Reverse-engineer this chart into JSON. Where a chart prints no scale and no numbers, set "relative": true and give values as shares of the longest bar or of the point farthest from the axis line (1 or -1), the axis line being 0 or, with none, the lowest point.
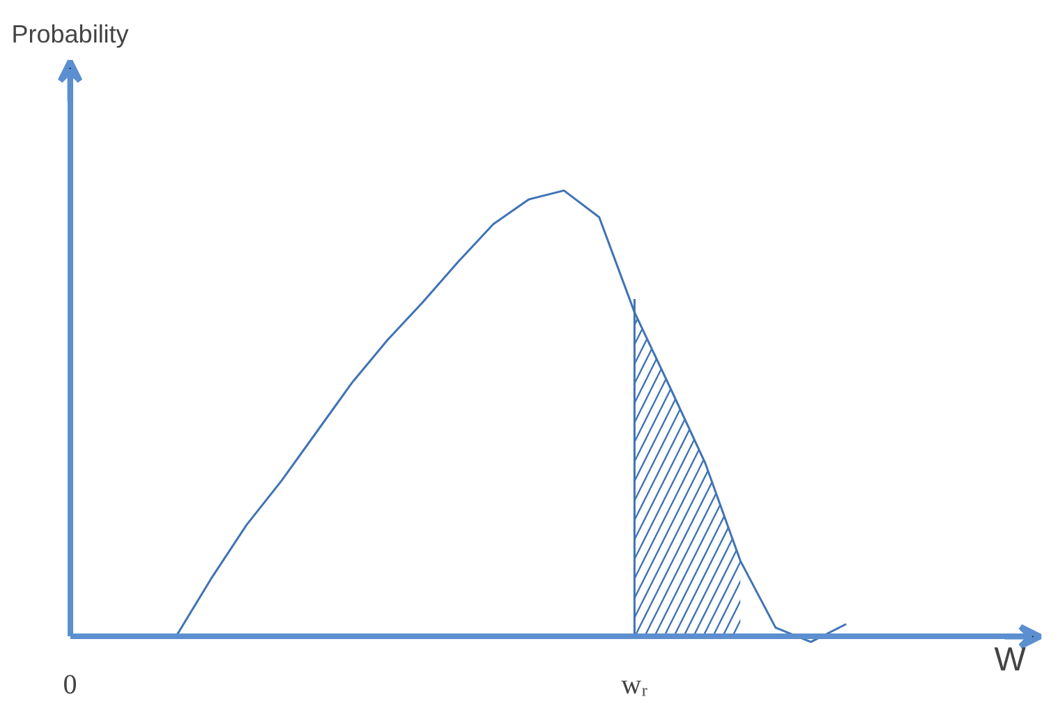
{
  "chart_data": {
    "type": "line",
    "relative": true,
    "xlabel": "W",
    "annotations": [
      "Probability"
    ],
    "categories": [
      "0",
      null,
      null,
      null,
      null,
      null,
      null,
      null,
      null,
      null,
      null,
      null,
      null,
      null,
      null,
      null,
      "wᵣ",
      null,
      null,
      null,
      null,
      null,
      null,
      null,
      null,
      null,
      null,
      null
    ],
    "grid": false,
    "series": [
      {
        "color": "#3f73b5",
        "values": [
          null,
          null,
          null,
          0,
          0.13,
          0.25,
          0.35,
          0.46,
          0.57,
          0.665,
          0.75,
          0.84,
          0.925,
          0.98,
          1,
          0.94,
          0.727,
          0.56,
          0.39,
          0.17,
          0.02,
          -0.012,
          0.028,
          null,
          null,
          null,
          null,
          null
        ]
      },
      {
        "type": "area",
        "color": "#3f73b5",
        "values": [
          null,
          null,
          null,
          null,
          null,
          null,
          null,
          null,
          null,
          null,
          null,
          null,
          null,
          null,
          null,
          null,
          0.727,
          0.56,
          0.39,
          0.17,
          null,
          null,
          null,
          null,
          null,
          null,
          null,
          null
        ]
      }
    ],
    "ref_lines": [
      {
        "axis": "x",
        "value": "wᵣ",
        "label": null,
        "color": "#3f73b5"
      }
    ]
  }
}
